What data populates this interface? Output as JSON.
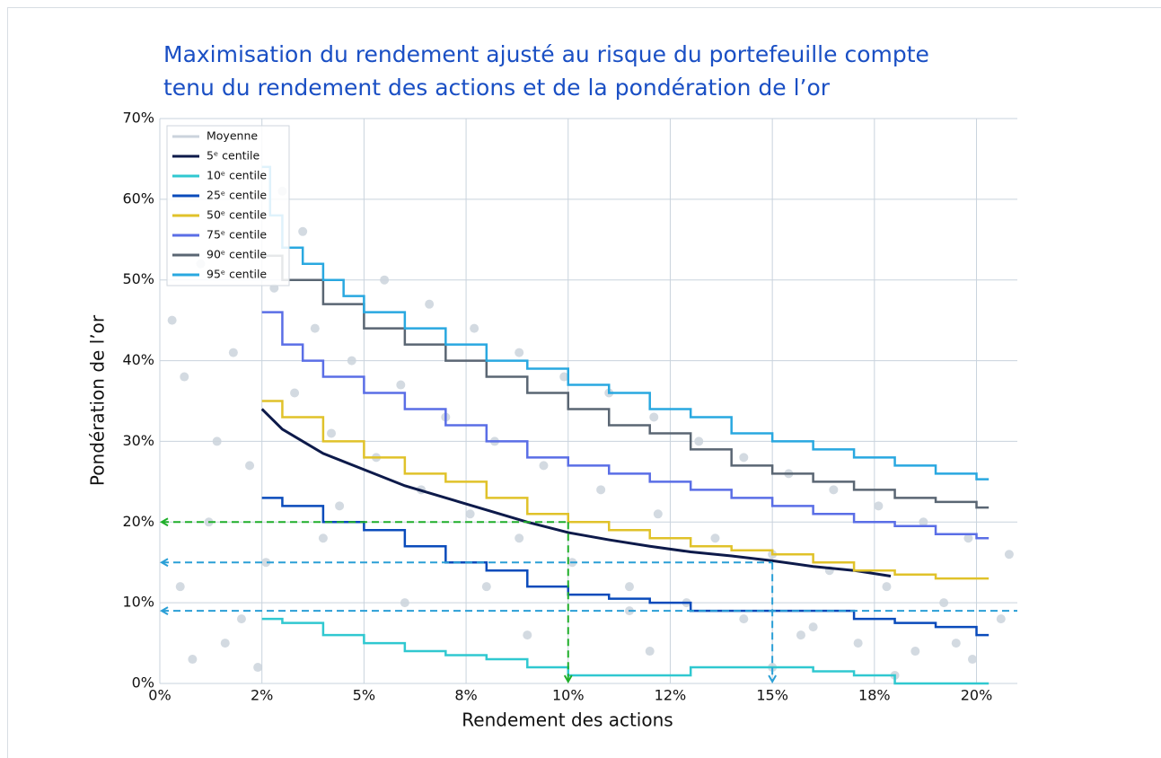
{
  "chart_data": {
    "type": "line",
    "title": [
      "Maximisation du rendement ajusté au risque du portefeuille compte",
      "tenu du rendement des actions et de la pondération de l’or"
    ],
    "xlabel": "Rendement des actions",
    "ylabel": "Pondération de l’or",
    "xlim": [
      0,
      21
    ],
    "ylim": [
      0,
      70
    ],
    "xticks": [
      {
        "value": 0,
        "label": "0%"
      },
      {
        "value": 2.5,
        "label": "2%"
      },
      {
        "value": 5,
        "label": "5%"
      },
      {
        "value": 7.5,
        "label": "8%"
      },
      {
        "value": 10,
        "label": "10%"
      },
      {
        "value": 12.5,
        "label": "12%"
      },
      {
        "value": 15,
        "label": "15%"
      },
      {
        "value": 17.5,
        "label": "18%"
      },
      {
        "value": 20,
        "label": "20%"
      }
    ],
    "yticks": [
      {
        "value": 0,
        "label": "0%"
      },
      {
        "value": 10,
        "label": "10%"
      },
      {
        "value": 20,
        "label": "20%"
      },
      {
        "value": 30,
        "label": "30%"
      },
      {
        "value": 40,
        "label": "40%"
      },
      {
        "value": 50,
        "label": "50%"
      },
      {
        "value": 60,
        "label": "60%"
      },
      {
        "value": 70,
        "label": "70%"
      }
    ],
    "grid": true,
    "legend": "upper left",
    "series": [
      {
        "name": "Moyenne",
        "color": "#cbd3dc",
        "kind": "scatter",
        "x": [
          0.3,
          0.6,
          1.0,
          1.4,
          1.8,
          2.2,
          0.5,
          1.2,
          2.0,
          2.8,
          3.3,
          3.8,
          4.2,
          4.7,
          5.3,
          5.9,
          6.4,
          7.0,
          7.6,
          8.2,
          8.8,
          9.4,
          10.1,
          10.8,
          11.5,
          12.2,
          12.9,
          13.6,
          14.3,
          15.0,
          15.7,
          16.4,
          17.1,
          17.8,
          18.5,
          19.2,
          19.9,
          20.6,
          0.8,
          1.6,
          2.6,
          3.5,
          4.4,
          5.5,
          6.6,
          7.7,
          8.8,
          9.9,
          11.0,
          12.1,
          13.2,
          14.3,
          15.4,
          16.5,
          17.6,
          18.7,
          19.8,
          20.8,
          3.0,
          6.0,
          9.0,
          12.0,
          15.0,
          18.0,
          4.0,
          8.0,
          11.5,
          16.0,
          19.5,
          2.4
        ],
        "values": [
          45,
          38,
          52,
          30,
          41,
          27,
          12,
          20,
          8,
          49,
          36,
          44,
          31,
          40,
          28,
          37,
          24,
          33,
          21,
          30,
          18,
          27,
          15,
          24,
          12,
          21,
          10,
          18,
          8,
          16,
          6,
          14,
          5,
          12,
          4,
          10,
          3,
          8,
          3,
          5,
          15,
          56,
          22,
          50,
          47,
          44,
          41,
          38,
          36,
          33,
          30,
          28,
          26,
          24,
          22,
          20,
          18,
          16,
          61,
          10,
          6,
          4,
          2,
          1,
          18,
          12,
          9,
          7,
          5,
          2
        ]
      },
      {
        "name": "5ᵉ centile",
        "color": "#0d1a4a",
        "step": false,
        "x": [
          2.5,
          3,
          4,
          5,
          6,
          7,
          8,
          9,
          10,
          11,
          12,
          13,
          14,
          15,
          16,
          17,
          17.9
        ],
        "values": [
          34,
          31.5,
          28.5,
          26.5,
          24.5,
          23,
          21.5,
          20,
          18.7,
          17.8,
          17,
          16.3,
          15.8,
          15.2,
          14.5,
          14,
          13.3
        ]
      },
      {
        "name": "10ᵉ centile",
        "color": "#30c8d0",
        "step": true,
        "x": [
          2.5,
          3,
          4,
          5,
          6,
          7,
          8,
          9,
          10,
          11,
          12,
          13,
          14,
          15,
          16,
          17,
          18,
          20.3
        ],
        "values": [
          8,
          7.5,
          6,
          5,
          4,
          3.5,
          3,
          2,
          1,
          1,
          1,
          2,
          2,
          2,
          1.5,
          1,
          0,
          0
        ]
      },
      {
        "name": "25ᵉ centile",
        "color": "#0a4bbb",
        "step": true,
        "x": [
          2.5,
          3,
          4,
          5,
          6,
          7,
          8,
          9,
          10,
          11,
          12,
          13,
          14,
          15,
          16,
          17,
          18,
          19,
          20,
          20.3
        ],
        "values": [
          23,
          22,
          20,
          19,
          17,
          15,
          14,
          12,
          11,
          10.5,
          10,
          9,
          9,
          9,
          9,
          8,
          7.5,
          7,
          6,
          6
        ]
      },
      {
        "name": "50ᵉ centile",
        "color": "#e0c22a",
        "step": true,
        "x": [
          2.5,
          3,
          4,
          5,
          6,
          7,
          8,
          9,
          10,
          11,
          12,
          13,
          14,
          15,
          16,
          17,
          18,
          19,
          20,
          20.3
        ],
        "values": [
          35,
          33,
          30,
          28,
          26,
          25,
          23,
          21,
          20,
          19,
          18,
          17,
          16.5,
          16,
          15,
          14,
          13.5,
          13,
          13,
          13
        ]
      },
      {
        "name": "75ᵉ centile",
        "color": "#5a6ee6",
        "step": true,
        "x": [
          2.5,
          3,
          3.5,
          4,
          5,
          6,
          7,
          8,
          9,
          10,
          11,
          12,
          13,
          14,
          15,
          16,
          17,
          18,
          19,
          20,
          20.3
        ],
        "values": [
          46,
          42,
          40,
          38,
          36,
          34,
          32,
          30,
          28,
          27,
          26,
          25,
          24,
          23,
          22,
          21,
          20,
          19.5,
          18.5,
          18,
          18
        ]
      },
      {
        "name": "90ᵉ centile",
        "color": "#5a6673",
        "step": true,
        "x": [
          2.5,
          3,
          4,
          5,
          6,
          7,
          8,
          9,
          10,
          11,
          12,
          13,
          14,
          15,
          16,
          17,
          18,
          19,
          20,
          20.3
        ],
        "values": [
          53,
          50,
          47,
          44,
          42,
          40,
          38,
          36,
          34,
          32,
          31,
          29,
          27,
          26,
          25,
          24,
          23,
          22.5,
          21.8,
          21.8
        ]
      },
      {
        "name": "95ᵉ centile",
        "color": "#29a8e0",
        "step": true,
        "x": [
          2.5,
          2.7,
          3,
          3.5,
          4,
          4.5,
          5,
          6,
          7,
          8,
          9,
          10,
          11,
          12,
          13,
          14,
          15,
          16,
          17,
          18,
          19,
          20,
          20.3
        ],
        "values": [
          64,
          58,
          54,
          52,
          50,
          48,
          46,
          44,
          42,
          40,
          39,
          37,
          36,
          34,
          33,
          31,
          30,
          29,
          28,
          27,
          26,
          25.3,
          25.3
        ]
      }
    ],
    "reference_lines": [
      {
        "x": 10,
        "y": 20,
        "color": "#1fae2a",
        "drop": true
      },
      {
        "x": 15,
        "y": 15,
        "color": "#2a9fd6",
        "drop": true
      },
      {
        "x": 21,
        "y": 9,
        "color": "#2a9fd6",
        "drop": false
      }
    ]
  }
}
